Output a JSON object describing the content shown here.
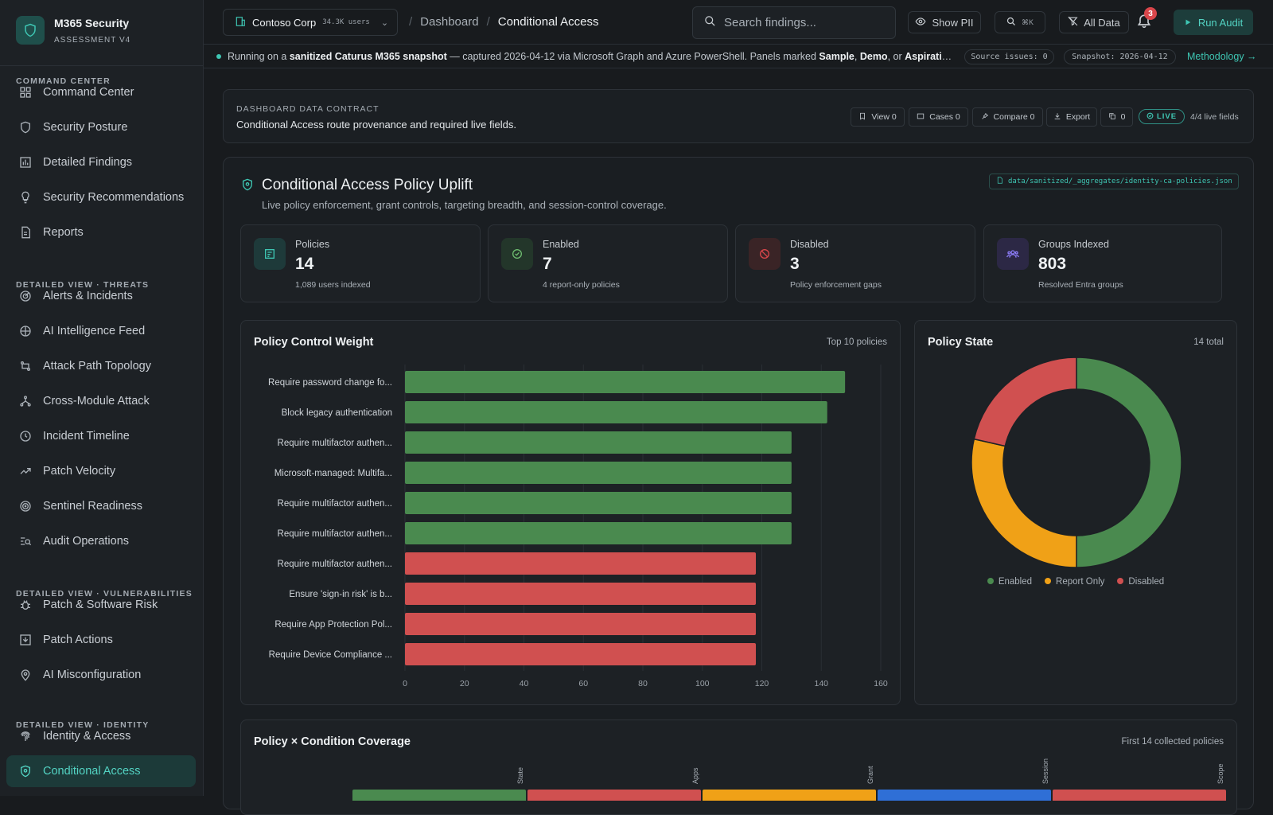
{
  "brand": {
    "title": "M365 Security",
    "subtitle": "ASSESSMENT V4"
  },
  "sidebar": {
    "sections": [
      {
        "label": "COMMAND CENTER"
      },
      {
        "label": "DETAILED VIEW · THREATS"
      },
      {
        "label": "DETAILED VIEW · VULNERABILITIES"
      },
      {
        "label": "DETAILED VIEW · IDENTITY"
      }
    ],
    "items": [
      {
        "label": "Command Center",
        "icon": "grid-icon"
      },
      {
        "label": "Security Posture",
        "icon": "shield-icon"
      },
      {
        "label": "Detailed Findings",
        "icon": "chart-icon"
      },
      {
        "label": "Security Recommendations",
        "icon": "lightbulb-icon"
      },
      {
        "label": "Reports",
        "icon": "document-icon"
      },
      {
        "label": "Alerts & Incidents",
        "icon": "radar-icon"
      },
      {
        "label": "AI Intelligence Feed",
        "icon": "brain-icon"
      },
      {
        "label": "Attack Path Topology",
        "icon": "route-icon"
      },
      {
        "label": "Cross-Module Attack",
        "icon": "network-icon"
      },
      {
        "label": "Incident Timeline",
        "icon": "clock-icon"
      },
      {
        "label": "Patch Velocity",
        "icon": "trend-up-icon"
      },
      {
        "label": "Sentinel Readiness",
        "icon": "target-icon"
      },
      {
        "label": "Audit Operations",
        "icon": "search-list-icon"
      },
      {
        "label": "Patch & Software Risk",
        "icon": "bug-icon"
      },
      {
        "label": "Patch Actions",
        "icon": "download-box-icon"
      },
      {
        "label": "AI Misconfiguration",
        "icon": "location-icon"
      },
      {
        "label": "Identity & Access",
        "icon": "fingerprint-icon"
      },
      {
        "label": "Conditional Access",
        "icon": "lock-shield-icon"
      }
    ]
  },
  "topbar": {
    "tenant": "Contoso Corp",
    "tenant_count": "34.3K users",
    "breadcrumb": [
      "Dashboard",
      "Conditional Access"
    ],
    "search_placeholder": "Search findings...",
    "show_pii": "Show PII",
    "shortcut": "⌘K",
    "all_data": "All Data",
    "notifications": "3",
    "run_audit": "Run Audit"
  },
  "banner": {
    "prefix": "Running on a ",
    "snapshot_name": "sanitized Caturus M365 snapshot",
    "middle": " — captured 2026-04-12 via Microsoft Graph and Azure PowerShell. Panels marked ",
    "tag1": "Sample",
    "sep1": ", ",
    "tag2": "Demo",
    "sep2": ", or ",
    "tag3": "Aspiratio...",
    "source_issues": "Source issues: 0",
    "snapshot": "Snapshot: 2026-04-12",
    "methodology": "Methodology →"
  },
  "contract": {
    "label": "DASHBOARD DATA CONTRACT",
    "text": "Conditional Access route provenance and required live fields.",
    "view": "View 0",
    "cases": "Cases 0",
    "compare": "Compare 0",
    "export": "Export",
    "copies": "0",
    "live": "LIVE",
    "live_fields": "4/4 live fields"
  },
  "panel": {
    "title": "Conditional Access Policy Uplift",
    "subtitle": "Live policy enforcement, grant controls, targeting breadth, and session-control coverage.",
    "source": "data/sanitized/_aggregates/identity-ca-policies.json · 14"
  },
  "kpis": [
    {
      "label": "Policies",
      "value": "14",
      "sub": "1,089 users indexed",
      "icon": "policy-list-icon",
      "color": "#3ec6b3"
    },
    {
      "label": "Enabled",
      "value": "7",
      "sub": "4 report-only policies",
      "icon": "check-circle-icon",
      "color": "#6dbb6f"
    },
    {
      "label": "Disabled",
      "value": "3",
      "sub": "Policy enforcement gaps",
      "icon": "ban-icon",
      "color": "#d9464b"
    },
    {
      "label": "Groups Indexed",
      "value": "803",
      "sub": "Resolved Entra groups",
      "icon": "people-icon",
      "color": "#8b7cf6"
    }
  ],
  "bar_card": {
    "title": "Policy Control Weight",
    "meta": "Top 10 policies"
  },
  "donut_card": {
    "title": "Policy State",
    "meta": "14 total"
  },
  "coverage_card": {
    "title": "Policy × Condition Coverage",
    "meta": "First 14 collected policies",
    "columns": [
      "State",
      "Apps",
      "Grant",
      "Session",
      "Scope"
    ]
  },
  "colors": {
    "enabled": "#4a8a4f",
    "report_only": "#f0a117",
    "disabled": "#d05050",
    "accent": "#3ec6b3"
  },
  "chart_data": [
    {
      "type": "bar",
      "orientation": "horizontal",
      "title": "Policy Control Weight",
      "categories": [
        "Require password change fo...",
        "Block legacy authentication",
        "Require multifactor authen...",
        "Microsoft-managed: Multifa...",
        "Require multifactor authen...",
        "Require multifactor authen...",
        "Require multifactor authen...",
        "Ensure 'sign-in risk' is b...",
        "Require App Protection Pol...",
        "Require Device Compliance ..."
      ],
      "values": [
        148,
        142,
        130,
        130,
        130,
        130,
        118,
        118,
        118,
        118
      ],
      "bar_states": [
        "enabled",
        "enabled",
        "enabled",
        "enabled",
        "enabled",
        "enabled",
        "disabled",
        "disabled",
        "disabled",
        "disabled"
      ],
      "xlim": [
        0,
        160
      ],
      "xticks": [
        0,
        20,
        40,
        60,
        80,
        100,
        120,
        140,
        160
      ],
      "grid": true
    },
    {
      "type": "pie",
      "title": "Policy State",
      "labels": [
        "Enabled",
        "Report Only",
        "Disabled"
      ],
      "values": [
        7,
        4,
        3
      ],
      "legend": "bottom"
    }
  ]
}
